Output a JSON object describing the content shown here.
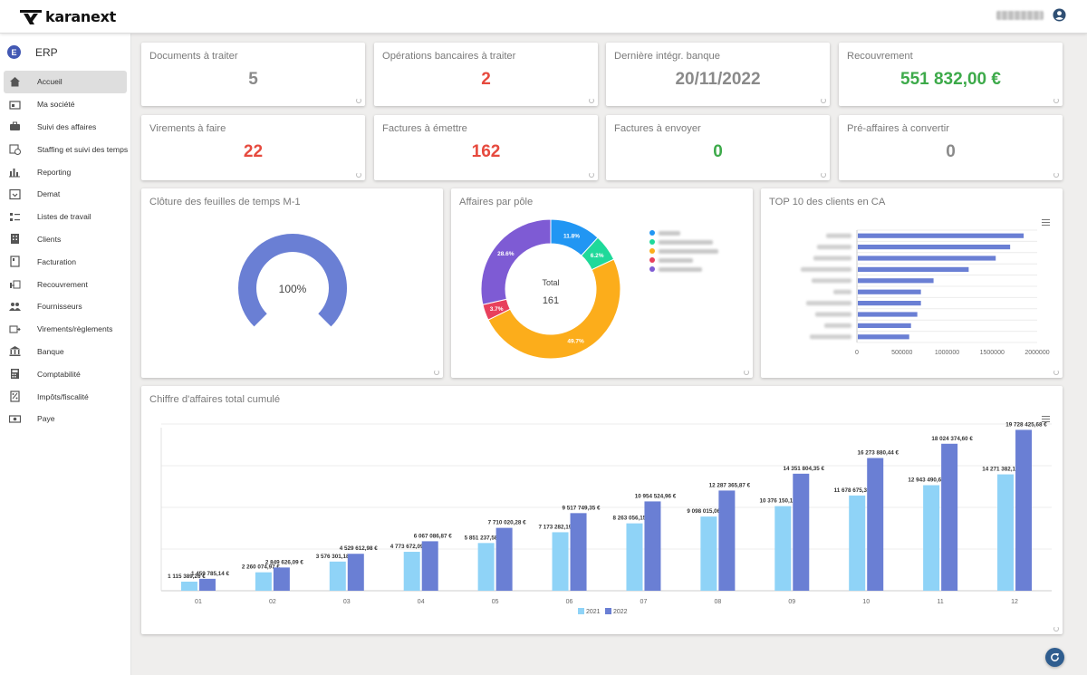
{
  "app": {
    "brand": "karanext",
    "section": "ERP",
    "section_badge": "E"
  },
  "menu": [
    {
      "label": "Accueil",
      "icon": "home-icon",
      "active": true
    },
    {
      "label": "Ma société",
      "icon": "company-icon"
    },
    {
      "label": "Suivi des affaires",
      "icon": "briefcase-icon"
    },
    {
      "label": "Staffing et suivi des temps",
      "icon": "calendar-clock-icon"
    },
    {
      "label": "Reporting",
      "icon": "bar-chart-icon"
    },
    {
      "label": "Demat",
      "icon": "inbox-icon"
    },
    {
      "label": "Listes de travail",
      "icon": "checklist-icon"
    },
    {
      "label": "Clients",
      "icon": "building-icon"
    },
    {
      "label": "Facturation",
      "icon": "invoice-icon"
    },
    {
      "label": "Recouvrement",
      "icon": "collection-icon"
    },
    {
      "label": "Fournisseurs",
      "icon": "people-icon"
    },
    {
      "label": "Virements/règlements",
      "icon": "transfer-icon"
    },
    {
      "label": "Banque",
      "icon": "bank-icon"
    },
    {
      "label": "Comptabilité",
      "icon": "accounting-icon"
    },
    {
      "label": "Impôts/fiscalité",
      "icon": "tax-icon"
    },
    {
      "label": "Paye",
      "icon": "payroll-icon"
    }
  ],
  "kpis": [
    {
      "title": "Documents à traiter",
      "value": "5",
      "color": "grey"
    },
    {
      "title": "Opérations bancaires à traiter",
      "value": "2",
      "color": "red"
    },
    {
      "title": "Dernière intégr. banque",
      "value": "20/11/2022",
      "color": "grey"
    },
    {
      "title": "Recouvrement",
      "value": "551 832,00 €",
      "color": "green"
    },
    {
      "title": "Virements à faire",
      "value": "22",
      "color": "red"
    },
    {
      "title": "Factures à émettre",
      "value": "162",
      "color": "red"
    },
    {
      "title": "Factures à envoyer",
      "value": "0",
      "color": "green"
    },
    {
      "title": "Pré-affaires à convertir",
      "value": "0",
      "color": "grey"
    }
  ],
  "gauge": {
    "title": "Clôture des feuilles de temps M-1",
    "value_label": "100%",
    "value": 100,
    "color": "#6a7fd4"
  },
  "donut": {
    "title": "Affaires par pôle",
    "center_label": "Total",
    "center_value": "161",
    "slices": [
      {
        "pct": 11.8,
        "label": "11.8%",
        "color": "#2196f3"
      },
      {
        "pct": 6.2,
        "label": "6.2%",
        "color": "#1fd99a"
      },
      {
        "pct": 49.7,
        "label": "49.7%",
        "color": "#fcad1b"
      },
      {
        "pct": 3.7,
        "label": "3.7%",
        "color": "#e8405c"
      },
      {
        "pct": 28.6,
        "label": "28.6%",
        "color": "#7e5bd4"
      }
    ]
  },
  "top10": {
    "title": "TOP 10 des clients en CA",
    "x_ticks": [
      "0",
      "500000",
      "1000000",
      "1500000",
      "2000000"
    ],
    "color": "#6a7fd4"
  },
  "chart_data": [
    {
      "type": "bar",
      "title": "TOP 10 des clients en CA",
      "categories": [
        "",
        "",
        "",
        "",
        "",
        "",
        "",
        "",
        "",
        ""
      ],
      "values": [
        1840000,
        1690000,
        1530000,
        1230000,
        840000,
        700000,
        700000,
        660000,
        590000,
        570000
      ],
      "xlim": [
        0,
        2000000
      ]
    },
    {
      "type": "bar",
      "title": "Chiffre d'affaires total cumulé",
      "categories": [
        "01",
        "02",
        "03",
        "04",
        "05",
        "06",
        "07",
        "08",
        "09",
        "10",
        "11",
        "12"
      ],
      "series": [
        {
          "name": "2021",
          "color": "#8fd3f7",
          "values": [
            1115389.26,
            2260074.97,
            3576301.18,
            4773672.09,
            5851237.58,
            7173282.19,
            8263056.15,
            9098015.06,
            10376150.18,
            11678675.35,
            12943490.63,
            14271382.15
          ],
          "labels": [
            "1 115 389,26 €",
            "2 260 074,97 €",
            "3 576 301,18 €",
            "4 773 672,09 €",
            "5 851 237,58 €",
            "7 173 282,19 €",
            "8 263 056,15 €",
            "9 098 015,06 €",
            "10 376 150,18 €",
            "11 678 675,35 €",
            "12 943 490,63 €",
            "14 271 382,15 €"
          ]
        },
        {
          "name": "2022",
          "color": "#6a7fd4",
          "values": [
            1459785.14,
            2849626.09,
            4529612.98,
            6067086.87,
            7710020.28,
            9517749.35,
            10954524.96,
            12287365.87,
            14351804.35,
            16273880.44,
            18024374.6,
            19728425.68
          ],
          "labels": [
            "1 459 785,14 €",
            "2 849 626,09 €",
            "4 529 612,98 €",
            "6 067 086,87 €",
            "7 710 020,28 €",
            "9 517 749,35 €",
            "10 954 524,96 €",
            "12 287 365,87 €",
            "14 351 804,35 €",
            "16 273 880,44 €",
            "18 024 374,60 €",
            "19 728 425,68 €"
          ]
        }
      ],
      "ylim": [
        0,
        20000000
      ],
      "legend": "bottom-center",
      "grid": true
    }
  ]
}
